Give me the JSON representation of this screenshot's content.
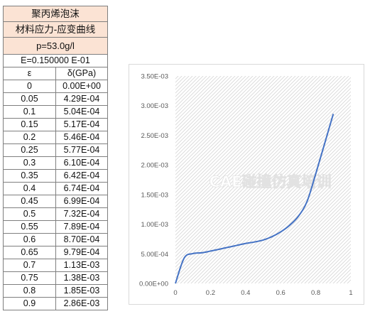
{
  "table": {
    "title_line1": "聚丙烯泡沫",
    "title_line2": "材料应力-应变曲线",
    "density": "p=53.0g/l",
    "modulus": "E=0.150000 E-01",
    "col_strain": "ε",
    "col_stress": "δ(GPa)",
    "rows": [
      {
        "strain": "0",
        "stress": "0.00E+00"
      },
      {
        "strain": "0.05",
        "stress": "4.29E-04"
      },
      {
        "strain": "0.1",
        "stress": "5.04E-04"
      },
      {
        "strain": "0.15",
        "stress": "5.17E-04"
      },
      {
        "strain": "0.2",
        "stress": "5.46E-04"
      },
      {
        "strain": "0.25",
        "stress": "5.77E-04"
      },
      {
        "strain": "0.3",
        "stress": "6.10E-04"
      },
      {
        "strain": "0.35",
        "stress": "6.42E-04"
      },
      {
        "strain": "0.4",
        "stress": "6.74E-04"
      },
      {
        "strain": "0.45",
        "stress": "6.99E-04"
      },
      {
        "strain": "0.5",
        "stress": "7.32E-04"
      },
      {
        "strain": "0.55",
        "stress": "7.89E-04"
      },
      {
        "strain": "0.6",
        "stress": "8.70E-04"
      },
      {
        "strain": "0.65",
        "stress": "9.79E-04"
      },
      {
        "strain": "0.7",
        "stress": "1.13E-03"
      },
      {
        "strain": "0.75",
        "stress": "1.38E-03"
      },
      {
        "strain": "0.8",
        "stress": "1.85E-03"
      },
      {
        "strain": "0.9",
        "stress": "2.86E-03"
      }
    ]
  },
  "watermark": "CAE碰撞仿真培训",
  "chart_data": {
    "type": "line",
    "title": "",
    "xlabel": "",
    "ylabel": "",
    "xlim": [
      0,
      1
    ],
    "ylim": [
      0,
      0.0035
    ],
    "x_ticks": [
      "0",
      "0.2",
      "0.4",
      "0.6",
      "0.8",
      "1"
    ],
    "y_ticks": [
      "0.00E+00",
      "5.00E-04",
      "1.00E-03",
      "1.50E-03",
      "2.00E-03",
      "2.50E-03",
      "3.00E-03",
      "3.50E-03"
    ],
    "x_tick_values": [
      0,
      0.2,
      0.4,
      0.6,
      0.8,
      1
    ],
    "y_tick_values": [
      0,
      0.0005,
      0.001,
      0.0015,
      0.002,
      0.0025,
      0.003,
      0.0035
    ],
    "grid": false,
    "legend": "none",
    "background": "hatched",
    "series": [
      {
        "color": "#4472c4",
        "x": [
          0,
          0.05,
          0.1,
          0.15,
          0.2,
          0.25,
          0.3,
          0.35,
          0.4,
          0.45,
          0.5,
          0.55,
          0.6,
          0.65,
          0.7,
          0.75,
          0.8,
          0.9
        ],
        "y": [
          0,
          0.000429,
          0.000504,
          0.000517,
          0.000546,
          0.000577,
          0.00061,
          0.000642,
          0.000674,
          0.000699,
          0.000732,
          0.000789,
          0.00087,
          0.000979,
          0.00113,
          0.00138,
          0.00185,
          0.00286
        ]
      }
    ]
  }
}
